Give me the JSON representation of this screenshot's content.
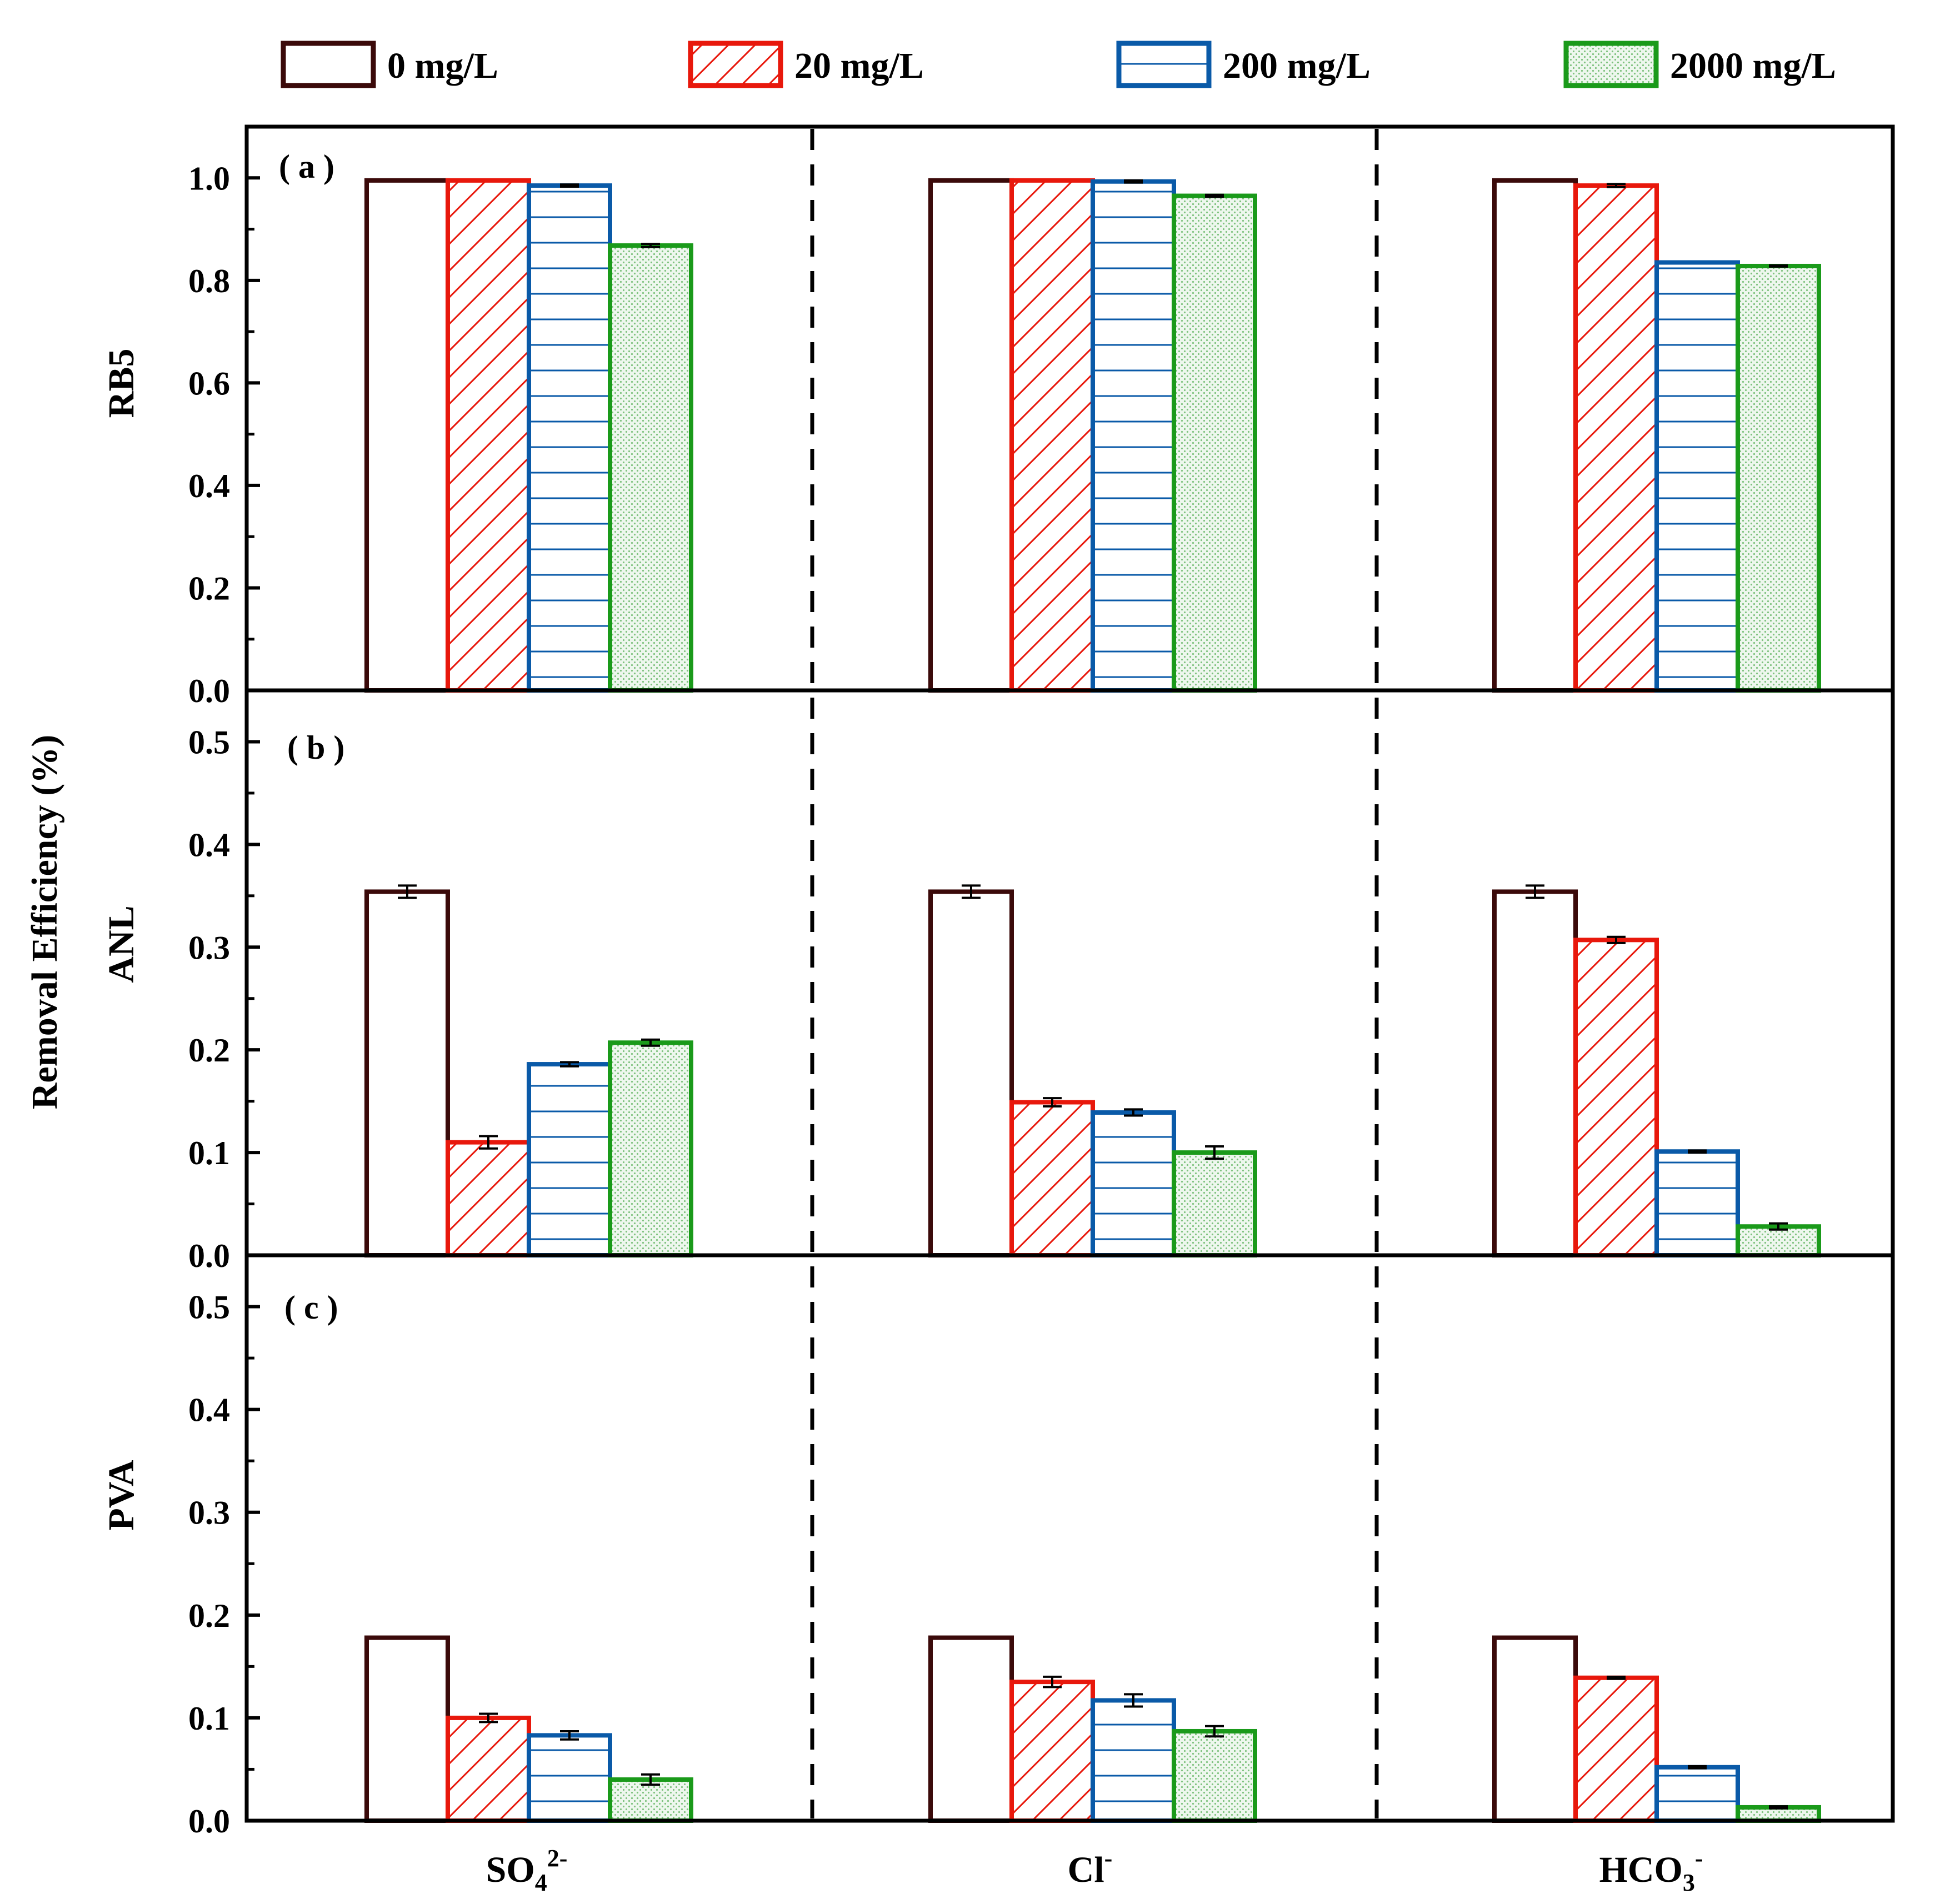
{
  "chart_data": {
    "type": "bar",
    "figure_ylabel": "Removal Efficiency (%)",
    "categories": [
      {
        "base": "SO",
        "sub": "4",
        "sup": "2-"
      },
      {
        "base": "Cl",
        "sub": "",
        "sup": "-"
      },
      {
        "base": "HCO",
        "sub": "3",
        "sup": "-"
      }
    ],
    "series": [
      {
        "name": "0 mg/L",
        "color": "#3b0a0a",
        "pattern": "none"
      },
      {
        "name": "20 mg/L",
        "color": "#e8180c",
        "pattern": "diagonal"
      },
      {
        "name": "200 mg/L",
        "color": "#0a5aa8",
        "pattern": "horizontal"
      },
      {
        "name": "2000 mg/L",
        "color": "#1a9a1a",
        "pattern": "dots"
      }
    ],
    "panels": [
      {
        "label": "( a )",
        "ylabel": "RB5",
        "ylim": [
          0,
          1.1
        ],
        "yticks": [
          "0.0",
          "0.2",
          "0.4",
          "0.6",
          "0.8",
          "1.0"
        ],
        "tick_values": [
          0,
          0.2,
          0.4,
          0.6,
          0.8,
          1.0
        ],
        "values": [
          [
            0.995,
            0.995,
            0.985,
            0.868
          ],
          [
            0.995,
            0.995,
            0.993,
            0.965
          ],
          [
            0.995,
            0.985,
            0.835,
            0.828
          ]
        ],
        "errors": [
          [
            0,
            0,
            0.002,
            0.003
          ],
          [
            0,
            0,
            0.002,
            0.002
          ],
          [
            0,
            0.003,
            0,
            0.001
          ]
        ]
      },
      {
        "label": "( b )",
        "ylabel": "ANL",
        "ylim": [
          0,
          0.55
        ],
        "yticks": [
          "0.0",
          "0.1",
          "0.2",
          "0.3",
          "0.4",
          "0.5"
        ],
        "tick_values": [
          0,
          0.1,
          0.2,
          0.3,
          0.4,
          0.5
        ],
        "values": [
          [
            0.354,
            0.11,
            0.186,
            0.207
          ],
          [
            0.354,
            0.149,
            0.139,
            0.1
          ],
          [
            0.354,
            0.307,
            0.101,
            0.028
          ]
        ],
        "errors": [
          [
            0.006,
            0.006,
            0.002,
            0.003
          ],
          [
            0.006,
            0.004,
            0.003,
            0.006
          ],
          [
            0.006,
            0.003,
            0.001,
            0.003
          ]
        ]
      },
      {
        "label": "( c )",
        "ylabel": "PVA",
        "ylim": [
          0,
          0.55
        ],
        "yticks": [
          "0.0",
          "0.1",
          "0.2",
          "0.3",
          "0.4",
          "0.5"
        ],
        "tick_values": [
          0,
          0.1,
          0.2,
          0.3,
          0.4,
          0.5
        ],
        "values": [
          [
            0.178,
            0.1,
            0.083,
            0.04
          ],
          [
            0.178,
            0.135,
            0.117,
            0.087
          ],
          [
            0.178,
            0.139,
            0.052,
            0.013
          ]
        ],
        "errors": [
          [
            0,
            0.004,
            0.004,
            0.005
          ],
          [
            0,
            0.005,
            0.006,
            0.005
          ],
          [
            0,
            0.001,
            0.001,
            0.001
          ]
        ]
      }
    ]
  }
}
